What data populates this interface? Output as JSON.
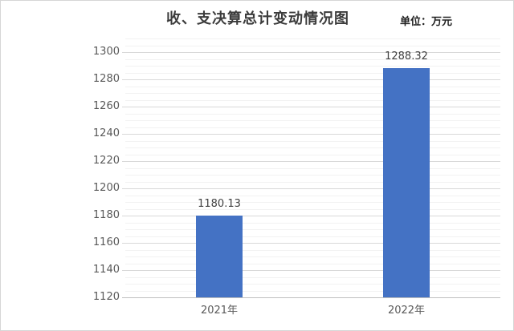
{
  "chart_data": {
    "type": "bar",
    "title": "收、支决算总计变动情况图",
    "unit_label": "单位：万元",
    "categories": [
      "2021年",
      "2022年"
    ],
    "values": [
      1180.13,
      1288.32
    ],
    "data_labels": [
      "1180.13",
      "1288.32"
    ],
    "xlabel": "",
    "ylabel": "",
    "ylim": [
      1120,
      1310
    ],
    "y_major_step": 20,
    "y_minor_step": 5,
    "y_tick_labels": [
      "1120",
      "1140",
      "1160",
      "1180",
      "1200",
      "1220",
      "1240",
      "1260",
      "1280",
      "1300"
    ],
    "grid": true,
    "legend_position": "none",
    "colors": {
      "bar": "#4472C4",
      "major_gridline": "#D9D9D9",
      "minor_gridline": "#F2F2F2",
      "axis_line": "#BFBFBF",
      "tick_label": "#595959",
      "data_label": "#404040",
      "title": "#3B3B3B",
      "unit_label": "#1F1F1F",
      "background": "#FFFFFF",
      "border": "#D6D6D6"
    }
  }
}
